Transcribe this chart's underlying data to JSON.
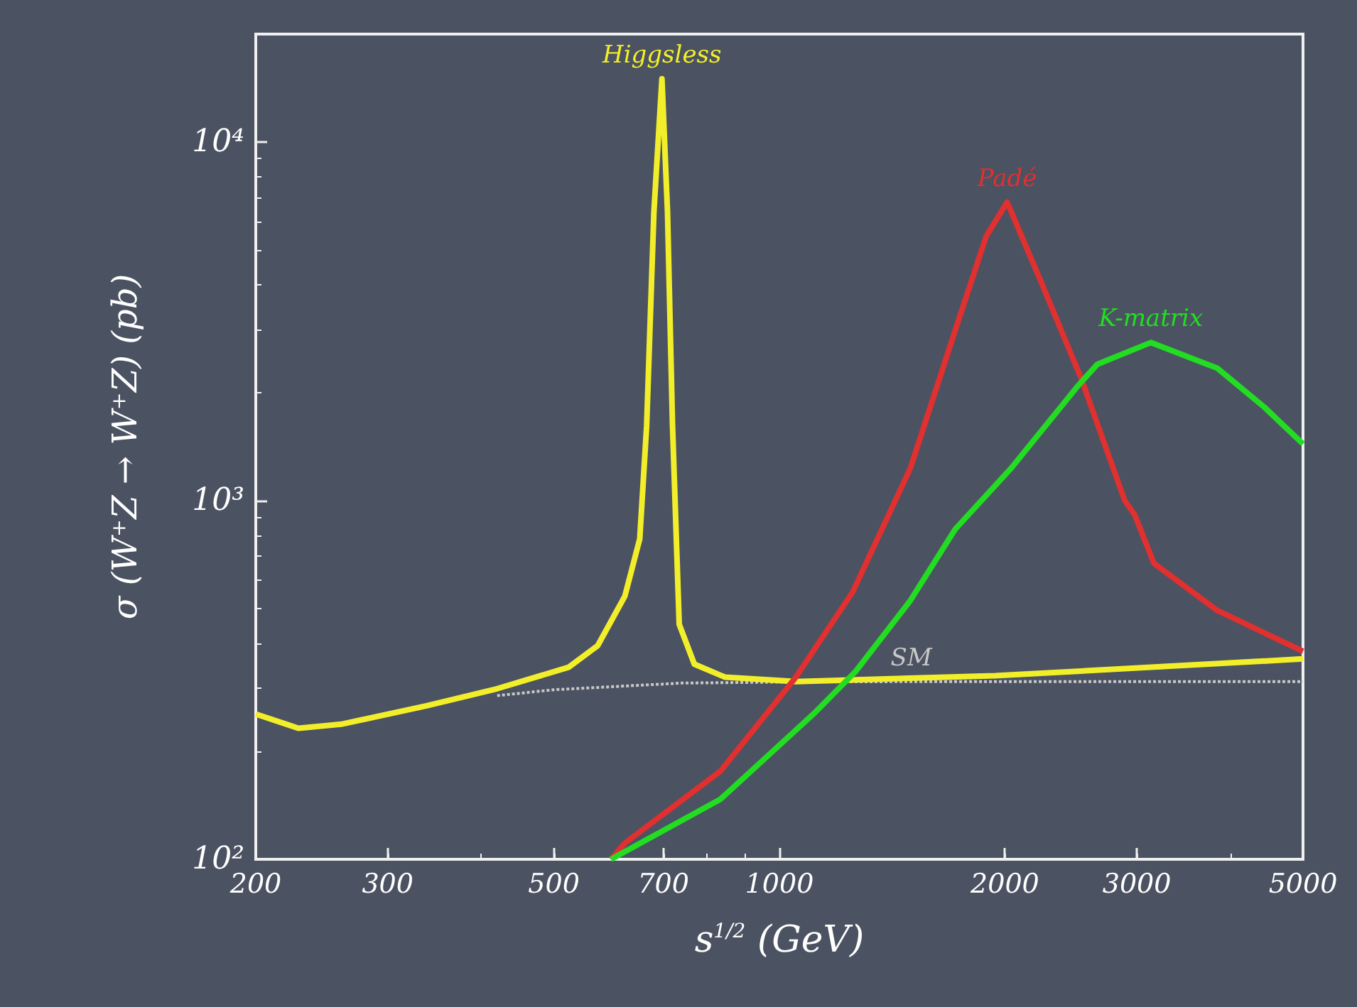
{
  "chart_data": {
    "type": "line",
    "xlabel": "s$^{1/2}$ (GeV)",
    "ylabel": "σ (W⁺Z → W⁺Z) (pb)",
    "log": "xy",
    "xlim": [
      200,
      5000
    ],
    "ylim": [
      100,
      20000
    ],
    "xticks": [
      200,
      300,
      500,
      700,
      1000,
      2000,
      3000,
      5000
    ],
    "yticks": [
      {
        "value": 100,
        "label": "10²"
      },
      {
        "value": 1000,
        "label": "10³"
      },
      {
        "value": 10000,
        "label": "10⁴"
      }
    ],
    "grid": false,
    "legend": false,
    "marker": "none",
    "series": [
      {
        "name": "SM",
        "color": "#c8c8c8",
        "line_style": "dotted",
        "x": [
          420,
          500,
          740,
          1000,
          1500,
          2500,
          5000
        ],
        "values": [
          286,
          297,
          310,
          312,
          313,
          313,
          313
        ]
      },
      {
        "name": "Higgsless",
        "color": "#f2ef2a",
        "line_style": "solid",
        "x": [
          200,
          228,
          260,
          338,
          420,
          523,
          572,
          622,
          651,
          665,
          680,
          697,
          709,
          720,
          735,
          770,
          846,
          1054,
          1941,
          5000
        ],
        "values": [
          254,
          232,
          238,
          268,
          299,
          343,
          394,
          542,
          782,
          1620,
          6400,
          15000,
          6400,
          1620,
          452,
          350,
          322,
          313,
          325,
          362
        ]
      },
      {
        "name": "Padé",
        "color": "#e03030",
        "line_style": "solid",
        "x": [
          596,
          622,
          834,
          1052,
          1253,
          1496,
          1717,
          1889,
          2014,
          2238,
          2529,
          2891,
          2982,
          3162,
          3843,
          5000
        ],
        "values": [
          100,
          111,
          176,
          322,
          557,
          1233,
          2990,
          5470,
          6800,
          4050,
          2190,
          1000,
          912,
          669,
          494,
          380
        ]
      },
      {
        "name": "K-matrix",
        "color": "#22dd22",
        "line_style": "solid",
        "x": [
          596,
          622,
          834,
          1110,
          1264,
          1496,
          1717,
          2040,
          2496,
          2657,
          3131,
          3843,
          4430,
          5000
        ],
        "values": [
          100,
          105,
          147,
          254,
          334,
          527,
          833,
          1233,
          2075,
          2400,
          2760,
          2340,
          1830,
          1440
        ]
      }
    ]
  }
}
